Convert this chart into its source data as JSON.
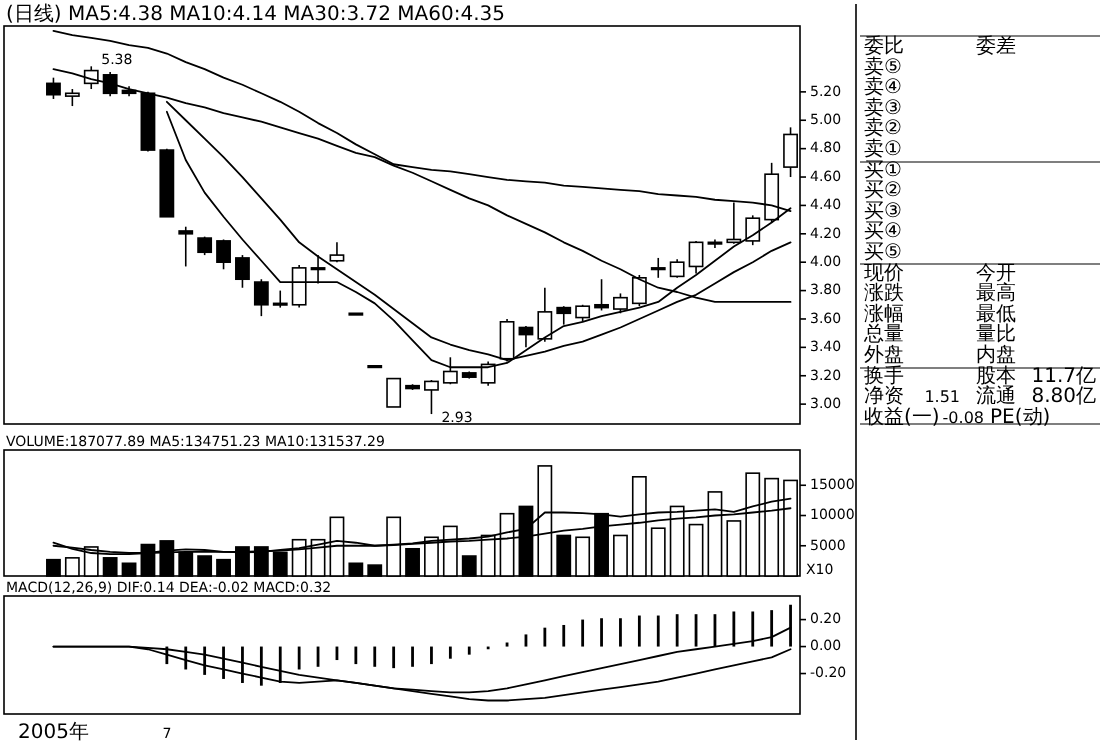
{
  "chart_data": [
    {
      "type": "candlestick",
      "title": "(日线) MA5:4.38 MA10:4.14 MA30:3.72 MA60:4.35",
      "categories": [
        null,
        null,
        null,
        null,
        null,
        null,
        null,
        null,
        null,
        null,
        null,
        null,
        null,
        null,
        null,
        null,
        null,
        null,
        null,
        null,
        null,
        null,
        null,
        null,
        null,
        null,
        null,
        null,
        null,
        null,
        null,
        null,
        null,
        null,
        null,
        null,
        null,
        null,
        null,
        null
      ],
      "ohlc": [
        [
          5.26,
          5.3,
          5.15,
          5.18
        ],
        [
          5.17,
          5.22,
          5.1,
          5.19
        ],
        [
          5.26,
          5.38,
          5.22,
          5.35
        ],
        [
          5.32,
          5.34,
          5.17,
          5.19
        ],
        [
          5.21,
          5.24,
          5.17,
          5.19
        ],
        [
          5.19,
          5.2,
          4.78,
          4.79
        ],
        [
          4.79,
          4.8,
          4.32,
          4.32
        ],
        [
          4.22,
          4.25,
          3.97,
          4.2
        ],
        [
          4.17,
          4.18,
          4.05,
          4.07
        ],
        [
          4.15,
          4.16,
          3.95,
          4.0
        ],
        [
          4.03,
          4.05,
          3.82,
          3.88
        ],
        [
          3.86,
          3.88,
          3.62,
          3.7
        ],
        [
          3.71,
          3.8,
          3.68,
          3.7
        ],
        [
          3.7,
          3.98,
          3.68,
          3.96
        ],
        [
          3.95,
          4.05,
          3.85,
          3.96
        ],
        [
          4.01,
          4.14,
          4.0,
          4.05
        ],
        [
          3.64,
          3.64,
          3.63,
          3.63
        ],
        [
          3.27,
          3.27,
          3.26,
          3.26
        ],
        [
          2.98,
          3.18,
          2.98,
          3.18
        ],
        [
          3.13,
          3.14,
          3.1,
          3.11
        ],
        [
          3.1,
          3.17,
          2.93,
          3.16
        ],
        [
          3.15,
          3.33,
          3.14,
          3.23
        ],
        [
          3.22,
          3.23,
          3.18,
          3.19
        ],
        [
          3.15,
          3.3,
          3.13,
          3.28
        ],
        [
          3.32,
          3.6,
          3.3,
          3.58
        ],
        [
          3.54,
          3.55,
          3.4,
          3.49
        ],
        [
          3.46,
          3.82,
          3.44,
          3.65
        ],
        [
          3.68,
          3.69,
          3.56,
          3.64
        ],
        [
          3.61,
          3.7,
          3.58,
          3.69
        ],
        [
          3.7,
          3.88,
          3.66,
          3.68
        ],
        [
          3.67,
          3.78,
          3.64,
          3.75
        ],
        [
          3.71,
          3.91,
          3.69,
          3.89
        ],
        [
          3.95,
          4.03,
          3.89,
          3.96
        ],
        [
          3.9,
          4.02,
          3.89,
          4.0
        ],
        [
          3.97,
          4.15,
          3.92,
          4.14
        ],
        [
          4.13,
          4.16,
          4.1,
          4.14
        ],
        [
          4.14,
          4.42,
          4.13,
          4.16
        ],
        [
          4.15,
          4.33,
          4.12,
          4.31
        ],
        [
          4.3,
          4.7,
          4.28,
          4.62
        ],
        [
          4.67,
          4.95,
          4.6,
          4.9
        ]
      ],
      "series": [
        {
          "type": "line",
          "color": "#000000",
          "values": [
            5.63,
            5.6,
            5.58,
            5.56,
            5.53,
            5.51,
            5.47,
            5.41,
            5.36,
            5.3,
            5.25,
            5.19,
            5.13,
            5.06,
            4.98,
            4.91,
            4.83,
            4.76,
            4.69,
            4.67,
            4.65,
            4.64,
            4.62,
            4.6,
            4.58,
            4.57,
            4.56,
            4.54,
            4.53,
            4.52,
            4.51,
            4.5,
            4.48,
            4.47,
            4.46,
            4.44,
            4.43,
            4.42,
            4.4,
            4.36
          ]
        },
        {
          "type": "line",
          "color": "#000000",
          "values": [
            5.36,
            5.33,
            5.29,
            5.26,
            5.22,
            5.19,
            5.16,
            5.12,
            5.09,
            5.05,
            5.02,
            4.99,
            4.95,
            4.91,
            4.87,
            4.82,
            4.77,
            4.74,
            4.68,
            4.63,
            4.57,
            4.51,
            4.45,
            4.4,
            4.33,
            4.27,
            4.21,
            4.14,
            4.08,
            4.01,
            3.95,
            3.88,
            3.82,
            3.79,
            3.75,
            3.72,
            3.72,
            3.72,
            3.72,
            3.72
          ]
        },
        {
          "type": "line",
          "color": "#000000",
          "values": [
            null,
            null,
            null,
            null,
            null,
            null,
            5.13,
            5.0,
            4.87,
            4.74,
            4.6,
            4.45,
            4.3,
            4.14,
            4.04,
            3.95,
            3.86,
            3.77,
            3.67,
            3.57,
            3.47,
            3.42,
            3.38,
            3.35,
            3.31,
            3.34,
            3.37,
            3.41,
            3.44,
            3.49,
            3.54,
            3.6,
            3.66,
            3.72,
            3.77,
            3.85,
            3.93,
            4.0,
            4.08,
            4.14
          ]
        },
        {
          "type": "line",
          "color": "#000000",
          "values": [
            null,
            null,
            null,
            null,
            null,
            null,
            5.06,
            4.72,
            4.49,
            4.32,
            4.16,
            4.01,
            3.86,
            3.86,
            3.86,
            3.86,
            3.79,
            3.71,
            3.59,
            3.45,
            3.31,
            3.26,
            3.26,
            3.26,
            3.29,
            3.38,
            3.47,
            3.55,
            3.58,
            3.62,
            3.65,
            3.68,
            3.72,
            3.82,
            3.91,
            4.01,
            4.11,
            4.19,
            4.28,
            4.38
          ]
        }
      ],
      "ylim": [
        2.86,
        5.65
      ],
      "yticks": [
        {
          "value": 3,
          "label": "3.00"
        },
        {
          "value": 3.2,
          "label": "3.20"
        },
        {
          "value": 3.4,
          "label": "3.40"
        },
        {
          "value": 3.6,
          "label": "3.60"
        },
        {
          "value": 3.8,
          "label": "3.80"
        },
        {
          "value": 4,
          "label": "4.00"
        },
        {
          "value": 4.2,
          "label": "4.20"
        },
        {
          "value": 4.4,
          "label": "4.40"
        },
        {
          "value": 4.6,
          "label": "4.60"
        },
        {
          "value": 4.8,
          "label": "4.80"
        },
        {
          "value": 5,
          "label": "5.00"
        },
        {
          "value": 5.2,
          "label": "5.20"
        }
      ],
      "annotations": [
        {
          "text": "5.38",
          "y": 5.38
        },
        "2.93"
      ]
    },
    {
      "type": "bar",
      "title": "VOLUME:187077.89 MA5:134751.23 MA10:131537.29",
      "categories": [
        null,
        null,
        null,
        null,
        null,
        null,
        null,
        null,
        null,
        null,
        null,
        null,
        null,
        null,
        null,
        null,
        null,
        null,
        null,
        null,
        null,
        null,
        null,
        null,
        null,
        null,
        null,
        null,
        null,
        null,
        null,
        null,
        null,
        null,
        null,
        null,
        null,
        null,
        null,
        null
      ],
      "series": [
        {
          "type": "bar",
          "values": [
            2700,
            3000,
            4800,
            3000,
            2100,
            5200,
            5800,
            3900,
            3300,
            2700,
            4800,
            4800,
            3900,
            6000,
            6000,
            9700,
            2100,
            1800,
            9700,
            4500,
            6400,
            8200,
            3300,
            6700,
            10300,
            11500,
            18200,
            6700,
            6400,
            10300,
            6700,
            16400,
            7900,
            11500,
            8500,
            13900,
            9100,
            17000,
            16100,
            15800
          ],
          "colors": [
            "#000000",
            "#ffffff",
            "#ffffff",
            "#000000",
            "#000000",
            "#000000",
            "#000000",
            "#000000",
            "#000000",
            "#000000",
            "#000000",
            "#000000",
            "#000000",
            "#ffffff",
            "#ffffff",
            "#ffffff",
            "#000000",
            "#000000",
            "#ffffff",
            "#000000",
            "#ffffff",
            "#ffffff",
            "#000000",
            "#ffffff",
            "#ffffff",
            "#000000",
            "#ffffff",
            "#000000",
            "#ffffff",
            "#000000",
            "#ffffff",
            "#ffffff",
            "#ffffff",
            "#ffffff",
            "#ffffff",
            "#ffffff",
            "#ffffff",
            "#ffffff",
            "#ffffff",
            "#ffffff"
          ]
        },
        {
          "type": "line",
          "color": "#000000",
          "values": [
            5500,
            4500,
            3800,
            3600,
            3600,
            3800,
            4200,
            4400,
            4300,
            4000,
            3900,
            4000,
            4300,
            4600,
            5200,
            5800,
            5500,
            5000,
            5200,
            5400,
            5800,
            6000,
            6200,
            6500,
            7200,
            7800,
            10500,
            10500,
            10400,
            10200,
            9800,
            10200,
            10500,
            10600,
            10800,
            11000,
            10600,
            11500,
            12300,
            12800
          ]
        },
        {
          "type": "line",
          "color": "#000000",
          "values": [
            5000,
            4700,
            4300,
            4000,
            3800,
            3800,
            3900,
            4000,
            4000,
            4000,
            4000,
            4100,
            4200,
            4400,
            4700,
            5000,
            5000,
            5000,
            5100,
            5300,
            5500,
            5700,
            5800,
            6000,
            6200,
            6500,
            7000,
            7500,
            7800,
            8200,
            8500,
            8800,
            9200,
            9500,
            9700,
            10000,
            10200,
            10500,
            10800,
            11200
          ]
        }
      ],
      "ylim": [
        0,
        20500
      ],
      "yticks": [
        5000,
        10000,
        15000
      ],
      "annotations": [
        "X10"
      ]
    },
    {
      "type": "bar",
      "title": "MACD(12,26,9) DIF:0.14 DEA:-0.02 MACD:0.32",
      "categories": [
        "2005年",
        null,
        null,
        null,
        null,
        null,
        "7",
        null,
        null,
        null,
        null,
        null,
        null,
        null,
        null,
        null,
        null,
        null,
        null,
        null,
        null,
        null,
        null,
        null,
        null,
        null,
        null,
        null,
        null,
        null,
        null,
        null,
        null,
        null,
        null,
        null,
        null,
        null,
        null,
        null
      ],
      "series": [
        {
          "type": "bar",
          "color": "#000000",
          "values": [
            null,
            null,
            null,
            null,
            null,
            null,
            -0.13,
            -0.17,
            -0.21,
            -0.24,
            -0.27,
            -0.29,
            -0.27,
            -0.17,
            -0.15,
            -0.1,
            -0.13,
            -0.15,
            -0.16,
            -0.15,
            -0.13,
            -0.09,
            -0.06,
            -0.02,
            0.03,
            0.09,
            0.14,
            0.16,
            0.2,
            0.21,
            0.21,
            0.23,
            0.23,
            0.24,
            0.24,
            0.24,
            0.26,
            0.26,
            0.27,
            0.31
          ]
        },
        {
          "type": "line",
          "color": "#000000",
          "values": [
            0,
            0,
            0,
            0,
            0,
            -0.02,
            -0.06,
            -0.1,
            -0.14,
            -0.17,
            -0.2,
            -0.23,
            -0.26,
            -0.27,
            -0.26,
            -0.25,
            -0.27,
            -0.29,
            -0.31,
            -0.32,
            -0.33,
            -0.34,
            -0.34,
            -0.33,
            -0.31,
            -0.28,
            -0.25,
            -0.22,
            -0.19,
            -0.16,
            -0.13,
            -0.1,
            -0.07,
            -0.04,
            -0.02,
            0,
            0.02,
            0.04,
            0.07,
            0.14
          ]
        },
        {
          "type": "line",
          "color": "#000000",
          "values": [
            0,
            0,
            0,
            0,
            0,
            -0.01,
            -0.02,
            -0.04,
            -0.06,
            -0.09,
            -0.12,
            -0.15,
            -0.18,
            -0.21,
            -0.23,
            -0.25,
            -0.27,
            -0.29,
            -0.31,
            -0.33,
            -0.35,
            -0.37,
            -0.39,
            -0.4,
            -0.4,
            -0.39,
            -0.38,
            -0.36,
            -0.34,
            -0.32,
            -0.3,
            -0.28,
            -0.26,
            -0.23,
            -0.2,
            -0.17,
            -0.14,
            -0.11,
            -0.08,
            -0.02
          ]
        }
      ],
      "ylim": [
        -0.5,
        0.36
      ],
      "yticks": [
        {
          "value": -0.2,
          "label": "-0.20"
        },
        {
          "value": 0,
          "label": "0.00"
        },
        {
          "value": 0.2,
          "label": "0.20"
        }
      ]
    },
    {
      "type": "other",
      "annotations": [
        "委比",
        "委差",
        "卖⑤",
        "卖④",
        "卖③",
        "卖②",
        "卖①",
        "买①",
        "买②",
        "买③",
        "买④",
        "买⑤",
        "现价",
        "今开",
        "涨跌",
        "最高",
        "涨幅",
        "最低",
        "总量",
        "量比",
        "外盘",
        "内盘",
        "换手",
        "股本",
        "11.7亿",
        "净资",
        "1.51",
        "流通",
        "8.80亿",
        "收益(一)",
        "-0.08",
        "PE(动)"
      ]
    }
  ]
}
